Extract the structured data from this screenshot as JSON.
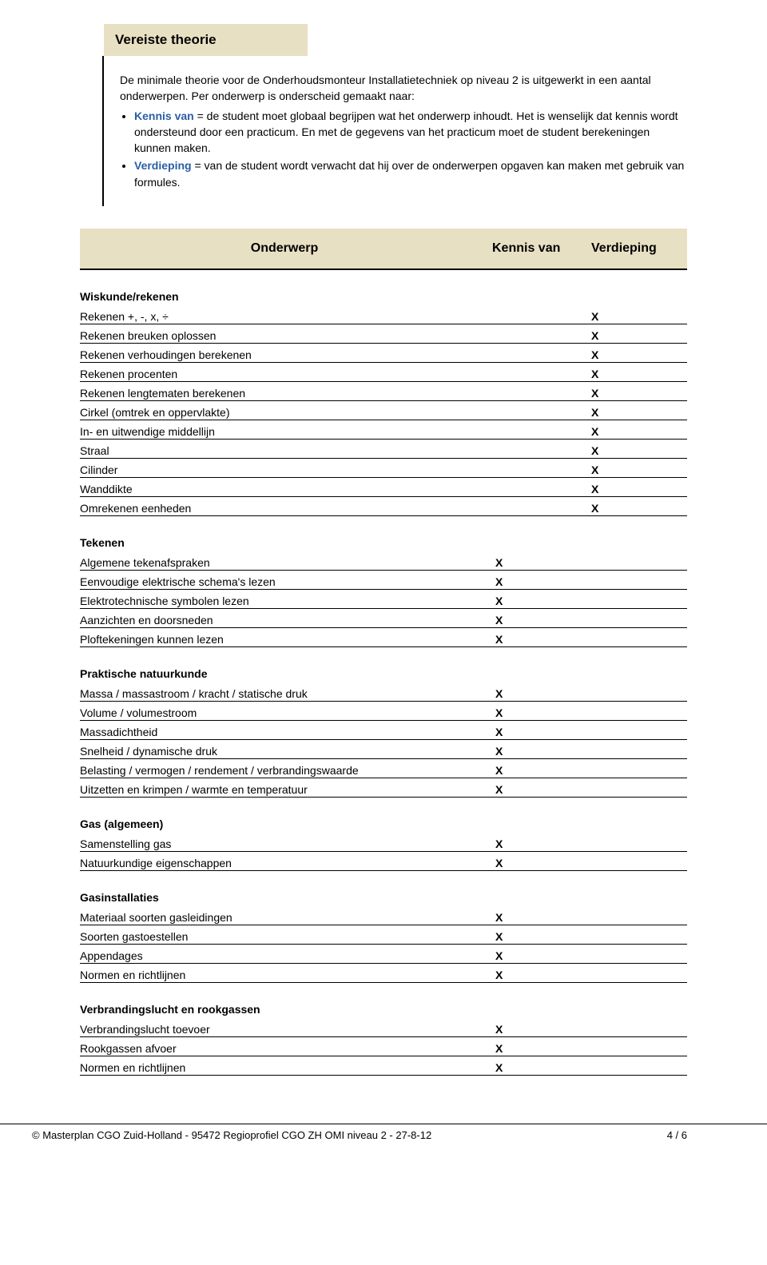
{
  "title": "Vereiste theorie",
  "intro": {
    "p1": "De minimale theorie voor de Onderhoudsmonteur Installatietechniek op niveau 2 is uitgewerkt in een aantal onderwerpen. Per onderwerp is onderscheid gemaakt naar:",
    "bullets": [
      {
        "term": "Kennis van",
        "text": " = de student moet globaal begrijpen wat het onderwerp inhoudt. Het is wenselijk dat kennis wordt ondersteund door een practicum. En met de gegevens van het practicum moet de student berekeningen kunnen maken."
      },
      {
        "term": "Verdieping",
        "text": " = van de student wordt verwacht dat hij over de onderwerpen opgaven kan maken met gebruik van formules."
      }
    ]
  },
  "headers": {
    "topic": "Onderwerp",
    "kennis": "Kennis van",
    "verd": "Verdieping"
  },
  "sections": [
    {
      "title": "Wiskunde/rekenen",
      "rows": [
        {
          "topic": "Rekenen +, -, x, ÷",
          "kennis": "",
          "verd": "X"
        },
        {
          "topic": "Rekenen breuken oplossen",
          "kennis": "",
          "verd": "X"
        },
        {
          "topic": "Rekenen verhoudingen berekenen",
          "kennis": "",
          "verd": "X"
        },
        {
          "topic": "Rekenen procenten",
          "kennis": "",
          "verd": "X"
        },
        {
          "topic": "Rekenen lengtematen berekenen",
          "kennis": "",
          "verd": "X"
        },
        {
          "topic": "Cirkel (omtrek en oppervlakte)",
          "kennis": "",
          "verd": "X"
        },
        {
          "topic": "In- en uitwendige middellijn",
          "kennis": "",
          "verd": "X"
        },
        {
          "topic": "Straal",
          "kennis": "",
          "verd": "X"
        },
        {
          "topic": "Cilinder",
          "kennis": "",
          "verd": "X"
        },
        {
          "topic": "Wanddikte",
          "kennis": "",
          "verd": "X"
        },
        {
          "topic": "Omrekenen eenheden",
          "kennis": "",
          "verd": "X"
        }
      ]
    },
    {
      "title": "Tekenen",
      "rows": [
        {
          "topic": "Algemene tekenafspraken",
          "kennis": "X",
          "verd": ""
        },
        {
          "topic": "Eenvoudige elektrische schema's lezen",
          "kennis": "X",
          "verd": ""
        },
        {
          "topic": "Elektrotechnische symbolen lezen",
          "kennis": "X",
          "verd": ""
        },
        {
          "topic": "Aanzichten en doorsneden",
          "kennis": "X",
          "verd": ""
        },
        {
          "topic": "Ploftekeningen kunnen lezen",
          "kennis": "X",
          "verd": ""
        }
      ]
    },
    {
      "title": "Praktische natuurkunde",
      "rows": [
        {
          "topic": "Massa / massastroom / kracht / statische druk",
          "kennis": "X",
          "verd": ""
        },
        {
          "topic": "Volume / volumestroom",
          "kennis": "X",
          "verd": ""
        },
        {
          "topic": "Massadichtheid",
          "kennis": "X",
          "verd": ""
        },
        {
          "topic": "Snelheid / dynamische druk",
          "kennis": "X",
          "verd": ""
        },
        {
          "topic": "Belasting / vermogen / rendement / verbrandingswaarde",
          "kennis": "X",
          "verd": ""
        },
        {
          "topic": "Uitzetten en krimpen / warmte en temperatuur",
          "kennis": "X",
          "verd": ""
        }
      ]
    },
    {
      "title": "Gas (algemeen)",
      "rows": [
        {
          "topic": "Samenstelling gas",
          "kennis": "X",
          "verd": ""
        },
        {
          "topic": "Natuurkundige eigenschappen",
          "kennis": "X",
          "verd": ""
        }
      ]
    },
    {
      "title": "Gasinstallaties",
      "rows": [
        {
          "topic": "Materiaal soorten gasleidingen",
          "kennis": "X",
          "verd": ""
        },
        {
          "topic": "Soorten gastoestellen",
          "kennis": "X",
          "verd": ""
        },
        {
          "topic": "Appendages",
          "kennis": "X",
          "verd": ""
        },
        {
          "topic": "Normen en richtlijnen",
          "kennis": "X",
          "verd": ""
        }
      ]
    },
    {
      "title": "Verbrandingslucht en rookgassen",
      "rows": [
        {
          "topic": "Verbrandingslucht toevoer",
          "kennis": "X",
          "verd": ""
        },
        {
          "topic": "Rookgassen afvoer",
          "kennis": "X",
          "verd": ""
        },
        {
          "topic": "Normen en richtlijnen",
          "kennis": "X",
          "verd": ""
        }
      ]
    }
  ],
  "footer": {
    "left": "© Masterplan CGO Zuid-Holland  -  95472  Regioprofiel CGO ZH OMI niveau 2  -  27-8-12",
    "right": "4 / 6"
  }
}
